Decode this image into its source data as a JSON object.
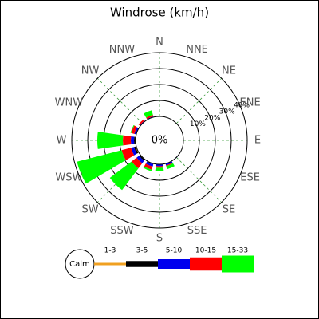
{
  "chart_data": {
    "type": "windrose",
    "title": "Windrose (km/h)",
    "categories": [
      "N",
      "NNE",
      "NE",
      "ENE",
      "E",
      "ESE",
      "SE",
      "SSE",
      "S",
      "SSW",
      "SW",
      "WSW",
      "W",
      "WNW",
      "NW",
      "NNW"
    ],
    "series": [
      {
        "name": "1-3",
        "color": "#f0a020",
        "values": [
          0,
          0,
          0,
          0,
          0,
          0,
          0,
          0,
          0,
          0.2,
          0.3,
          0.5,
          0.3,
          0,
          0,
          0
        ]
      },
      {
        "name": "3-5",
        "color": "#000000",
        "values": [
          0,
          0,
          0,
          0,
          0,
          0,
          0,
          0.2,
          0.2,
          0.3,
          0.7,
          1,
          0.7,
          0.3,
          0,
          0
        ]
      },
      {
        "name": "5-10",
        "color": "#0000ee",
        "values": [
          0.3,
          0,
          0,
          0,
          0,
          0,
          0.3,
          1,
          1,
          1.5,
          2,
          2,
          2,
          1,
          0.5,
          0.5
        ]
      },
      {
        "name": "10-15",
        "color": "#ff0000",
        "values": [
          0,
          0,
          0,
          0,
          0,
          0,
          0,
          0.5,
          1,
          2,
          4,
          6,
          5,
          2,
          1,
          1
        ]
      },
      {
        "name": "15-33",
        "color": "#00ff00",
        "values": [
          0,
          0,
          0,
          0,
          0,
          0,
          0,
          2,
          2,
          1,
          17,
          29,
          16,
          0.5,
          0,
          3
        ]
      }
    ],
    "rlim": [
      0,
      40
    ],
    "rticks": [
      {
        "value": 10,
        "label": "10%"
      },
      {
        "value": 20,
        "label": "20%"
      },
      {
        "value": 30,
        "label": "30%"
      },
      {
        "value": 40,
        "label": "40%"
      }
    ],
    "calm": {
      "value": 0,
      "label": "0%"
    },
    "calm_legend": "Calm",
    "grid": true
  }
}
